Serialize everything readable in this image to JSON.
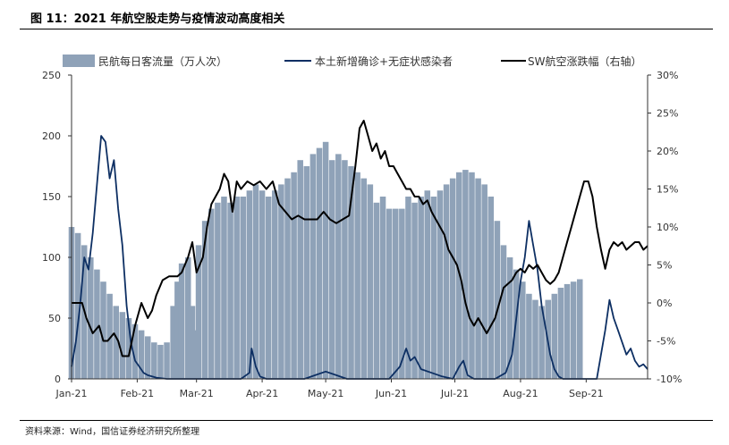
{
  "header": {
    "title": "图 11：2021 年航空股走势与疫情波动高度相关"
  },
  "footer": {
    "source": "资料来源：Wind，国信证券经济研究所整理"
  },
  "chart_data": {
    "type": "bar+line",
    "title": "",
    "legend": {
      "placement": "top",
      "items": [
        "民航每日客流量（万人次）",
        "本土新增确诊+无症状感染者",
        "SW航空涨跌幅（右轴）"
      ]
    },
    "colors": {
      "passengers": "#8fa2b8",
      "cases": "#0d2f63",
      "sw": "#000000"
    },
    "x_labels": [
      "Jan-21",
      "Feb-21",
      "Mar-21",
      "Apr-21",
      "May-21",
      "Jun-21",
      "Jul-21",
      "Aug-21",
      "Sep-21"
    ],
    "x_domain_days": [
      0,
      272
    ],
    "left_axis": {
      "ticks": [
        0,
        50,
        100,
        150,
        200,
        250
      ],
      "ylim": [
        0,
        250
      ]
    },
    "right_axis": {
      "ticks": [
        "-10%",
        "-5%",
        "0%",
        "5%",
        "10%",
        "15%",
        "20%",
        "25%",
        "30%"
      ],
      "ylim": [
        -10,
        30
      ]
    },
    "series": [
      {
        "name": "民航每日客流量（万人次）",
        "type": "bar",
        "axis": "left",
        "points": [
          [
            0,
            125
          ],
          [
            3,
            120
          ],
          [
            6,
            110
          ],
          [
            9,
            100
          ],
          [
            12,
            90
          ],
          [
            15,
            80
          ],
          [
            18,
            70
          ],
          [
            21,
            60
          ],
          [
            24,
            55
          ],
          [
            27,
            50
          ],
          [
            30,
            45
          ],
          [
            33,
            40
          ],
          [
            36,
            35
          ],
          [
            39,
            30
          ],
          [
            42,
            28
          ],
          [
            45,
            30
          ],
          [
            48,
            60
          ],
          [
            50,
            80
          ],
          [
            52,
            95
          ],
          [
            55,
            100
          ],
          [
            57,
            60
          ],
          [
            58,
            40
          ],
          [
            60,
            110
          ],
          [
            63,
            130
          ],
          [
            66,
            140
          ],
          [
            69,
            145
          ],
          [
            72,
            150
          ],
          [
            75,
            145
          ],
          [
            78,
            150
          ],
          [
            81,
            150
          ],
          [
            84,
            155
          ],
          [
            87,
            160
          ],
          [
            90,
            155
          ],
          [
            93,
            150
          ],
          [
            96,
            155
          ],
          [
            99,
            160
          ],
          [
            102,
            165
          ],
          [
            105,
            170
          ],
          [
            108,
            180
          ],
          [
            111,
            175
          ],
          [
            114,
            185
          ],
          [
            117,
            190
          ],
          [
            120,
            195
          ],
          [
            123,
            180
          ],
          [
            126,
            185
          ],
          [
            129,
            180
          ],
          [
            132,
            175
          ],
          [
            135,
            170
          ],
          [
            138,
            165
          ],
          [
            141,
            160
          ],
          [
            144,
            145
          ],
          [
            147,
            150
          ],
          [
            150,
            140
          ],
          [
            153,
            140
          ],
          [
            156,
            140
          ],
          [
            159,
            150
          ],
          [
            162,
            145
          ],
          [
            165,
            150
          ],
          [
            168,
            155
          ],
          [
            171,
            150
          ],
          [
            174,
            155
          ],
          [
            177,
            160
          ],
          [
            180,
            165
          ],
          [
            183,
            170
          ],
          [
            186,
            172
          ],
          [
            189,
            170
          ],
          [
            192,
            165
          ],
          [
            195,
            160
          ],
          [
            198,
            150
          ],
          [
            201,
            130
          ],
          [
            204,
            110
          ],
          [
            207,
            100
          ],
          [
            210,
            90
          ],
          [
            213,
            80
          ],
          [
            216,
            70
          ],
          [
            219,
            65
          ],
          [
            222,
            60
          ],
          [
            225,
            65
          ],
          [
            228,
            70
          ],
          [
            231,
            75
          ],
          [
            234,
            78
          ],
          [
            237,
            80
          ],
          [
            240,
            82
          ]
        ]
      },
      {
        "name": "本土新增确诊+无症状感染者",
        "type": "line",
        "axis": "left",
        "points": [
          [
            0,
            10
          ],
          [
            2,
            30
          ],
          [
            4,
            60
          ],
          [
            6,
            100
          ],
          [
            8,
            90
          ],
          [
            10,
            120
          ],
          [
            12,
            160
          ],
          [
            14,
            200
          ],
          [
            16,
            195
          ],
          [
            18,
            165
          ],
          [
            20,
            180
          ],
          [
            22,
            140
          ],
          [
            24,
            110
          ],
          [
            26,
            60
          ],
          [
            28,
            30
          ],
          [
            30,
            15
          ],
          [
            32,
            10
          ],
          [
            34,
            5
          ],
          [
            36,
            3
          ],
          [
            38,
            2
          ],
          [
            40,
            1
          ],
          [
            45,
            0
          ],
          [
            80,
            0
          ],
          [
            84,
            5
          ],
          [
            85,
            25
          ],
          [
            87,
            10
          ],
          [
            89,
            2
          ],
          [
            92,
            0
          ],
          [
            110,
            0
          ],
          [
            115,
            3
          ],
          [
            120,
            6
          ],
          [
            125,
            3
          ],
          [
            130,
            0
          ],
          [
            150,
            0
          ],
          [
            155,
            10
          ],
          [
            158,
            25
          ],
          [
            160,
            15
          ],
          [
            162,
            18
          ],
          [
            165,
            8
          ],
          [
            170,
            5
          ],
          [
            175,
            2
          ],
          [
            180,
            0
          ],
          [
            183,
            10
          ],
          [
            185,
            15
          ],
          [
            187,
            3
          ],
          [
            190,
            0
          ],
          [
            200,
            0
          ],
          [
            205,
            5
          ],
          [
            208,
            20
          ],
          [
            210,
            50
          ],
          [
            212,
            80
          ],
          [
            214,
            100
          ],
          [
            216,
            130
          ],
          [
            218,
            110
          ],
          [
            220,
            90
          ],
          [
            222,
            60
          ],
          [
            224,
            40
          ],
          [
            226,
            20
          ],
          [
            228,
            8
          ],
          [
            230,
            2
          ],
          [
            232,
            0
          ],
          [
            240,
            0
          ],
          [
            248,
            0
          ],
          [
            250,
            20
          ],
          [
            252,
            40
          ],
          [
            254,
            65
          ],
          [
            256,
            50
          ],
          [
            258,
            40
          ],
          [
            260,
            30
          ],
          [
            262,
            20
          ],
          [
            264,
            25
          ],
          [
            266,
            15
          ],
          [
            268,
            10
          ],
          [
            270,
            12
          ],
          [
            272,
            8
          ]
        ]
      },
      {
        "name": "SW航空涨跌幅（右轴）",
        "type": "line",
        "axis": "right",
        "points": [
          [
            0,
            0
          ],
          [
            5,
            0
          ],
          [
            7,
            -2
          ],
          [
            10,
            -4
          ],
          [
            13,
            -3
          ],
          [
            15,
            -5
          ],
          [
            17,
            -5
          ],
          [
            20,
            -4
          ],
          [
            22,
            -5
          ],
          [
            24,
            -7
          ],
          [
            27,
            -7
          ],
          [
            30,
            -3
          ],
          [
            33,
            0
          ],
          [
            36,
            -2
          ],
          [
            38,
            -1
          ],
          [
            40,
            1
          ],
          [
            43,
            3
          ],
          [
            46,
            3.5
          ],
          [
            50,
            3.5
          ],
          [
            52,
            4
          ],
          [
            55,
            6
          ],
          [
            57,
            8
          ],
          [
            59,
            4
          ],
          [
            62,
            6
          ],
          [
            64,
            10
          ],
          [
            66,
            13
          ],
          [
            68,
            14
          ],
          [
            70,
            15
          ],
          [
            72,
            17
          ],
          [
            74,
            16
          ],
          [
            76,
            12
          ],
          [
            78,
            16
          ],
          [
            80,
            15
          ],
          [
            83,
            16
          ],
          [
            86,
            15.5
          ],
          [
            89,
            16
          ],
          [
            92,
            15
          ],
          [
            95,
            16
          ],
          [
            98,
            13
          ],
          [
            101,
            12
          ],
          [
            104,
            11
          ],
          [
            107,
            11.5
          ],
          [
            110,
            11
          ],
          [
            113,
            11
          ],
          [
            116,
            11
          ],
          [
            119,
            12
          ],
          [
            122,
            11
          ],
          [
            125,
            10.5
          ],
          [
            128,
            11
          ],
          [
            131,
            11.5
          ],
          [
            134,
            18
          ],
          [
            136,
            23
          ],
          [
            138,
            24
          ],
          [
            140,
            22
          ],
          [
            142,
            20
          ],
          [
            144,
            21
          ],
          [
            146,
            19
          ],
          [
            148,
            20
          ],
          [
            150,
            18
          ],
          [
            152,
            18
          ],
          [
            154,
            17
          ],
          [
            156,
            16
          ],
          [
            158,
            15
          ],
          [
            160,
            15
          ],
          [
            162,
            14
          ],
          [
            164,
            14
          ],
          [
            166,
            13
          ],
          [
            168,
            13.5
          ],
          [
            170,
            12
          ],
          [
            172,
            11
          ],
          [
            174,
            10
          ],
          [
            176,
            9
          ],
          [
            178,
            7
          ],
          [
            180,
            6
          ],
          [
            182,
            5
          ],
          [
            184,
            3
          ],
          [
            186,
            0
          ],
          [
            188,
            -2
          ],
          [
            190,
            -3
          ],
          [
            192,
            -2
          ],
          [
            194,
            -3
          ],
          [
            196,
            -4
          ],
          [
            198,
            -3
          ],
          [
            200,
            -2
          ],
          [
            202,
            0
          ],
          [
            204,
            2
          ],
          [
            206,
            2.5
          ],
          [
            208,
            3
          ],
          [
            210,
            4
          ],
          [
            212,
            4.5
          ],
          [
            214,
            4
          ],
          [
            216,
            5
          ],
          [
            218,
            4.5
          ],
          [
            220,
            5
          ],
          [
            222,
            4
          ],
          [
            224,
            3
          ],
          [
            226,
            2.5
          ],
          [
            228,
            3
          ],
          [
            230,
            4
          ],
          [
            232,
            6
          ],
          [
            234,
            8
          ],
          [
            236,
            10
          ],
          [
            238,
            12
          ],
          [
            240,
            14
          ],
          [
            242,
            16
          ],
          [
            244,
            16
          ],
          [
            246,
            14
          ],
          [
            248,
            10
          ],
          [
            250,
            7
          ],
          [
            252,
            4.5
          ],
          [
            254,
            7
          ],
          [
            256,
            8
          ],
          [
            258,
            7.5
          ],
          [
            260,
            8
          ],
          [
            262,
            7
          ],
          [
            264,
            7.5
          ],
          [
            266,
            8
          ],
          [
            268,
            8
          ],
          [
            270,
            7
          ],
          [
            272,
            7.5
          ]
        ]
      }
    ]
  }
}
